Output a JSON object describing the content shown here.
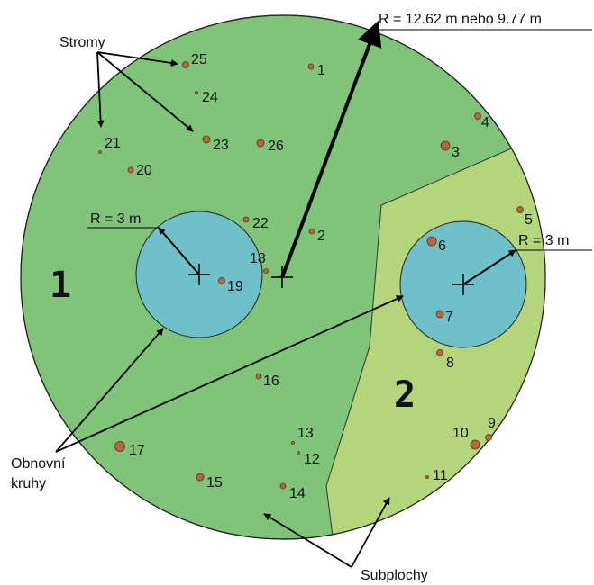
{
  "title_radius": "R = 12.62 m nebo 9.77 m",
  "trees_label": "Stromy",
  "regen_label": [
    "Obnovní",
    "kruhy"
  ],
  "subplots_label": "Subplochy",
  "subplots": [
    "1",
    "2"
  ],
  "circles": [
    {
      "radius_label": "R = 3 m"
    },
    {
      "radius_label": "R = 3 m"
    }
  ],
  "trees": [
    "25",
    "1",
    "24",
    "4",
    "21",
    "23",
    "26",
    "3",
    "20",
    "5",
    "22",
    "2",
    "6",
    "18",
    "19",
    "7",
    "8",
    "16",
    "9",
    "10",
    "17",
    "13",
    "12",
    "11",
    "15",
    "14"
  ]
}
